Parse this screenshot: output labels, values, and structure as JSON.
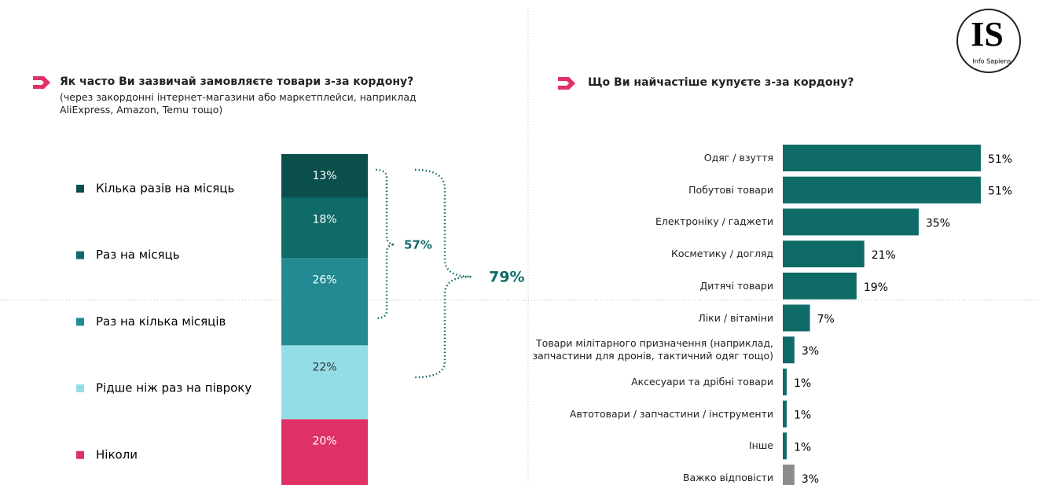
{
  "logo": {
    "mark": "IS",
    "name": "Info Sapiens"
  },
  "chart_data": [
    {
      "type": "stacked-column",
      "title": "Як часто Ви зазвичай замовляєте товари з-за кордону?",
      "subtitle": [
        "(через закордонні інтернет-магазини або маркетплейси, наприклад",
        "AliExpress, Amazon, Temu тощо)"
      ],
      "series": [
        {
          "name": "Кілька разів на місяць",
          "color": "#0b4f4c",
          "values": [
            13
          ],
          "value_labels": [
            "13%"
          ]
        },
        {
          "name": "Раз на місяць",
          "color": "#0f6b68",
          "values": [
            18
          ],
          "value_labels": [
            "18%"
          ]
        },
        {
          "name": "Раз на кілька місяців",
          "color": "#238a93",
          "values": [
            26
          ],
          "value_labels": [
            "26%"
          ]
        },
        {
          "name": "Рідше ніж раз на півроку",
          "color": "#93dde6",
          "values": [
            22
          ],
          "value_labels": [
            "22%"
          ]
        },
        {
          "name": "Ніколи",
          "color": "#e03167",
          "values": [
            20
          ],
          "value_labels": [
            "20%"
          ]
        }
      ],
      "annotations": [
        "57%",
        "79%"
      ]
    },
    {
      "type": "hbar",
      "title": "Що Ви найчастіше купуєте з-за кордону?",
      "categories": [
        "Одяг / взуття",
        "Побутові товари",
        "Електроніку / гаджети",
        "Косметику / догляд",
        "Дитячі товари",
        "Ліки / вітаміни",
        "Товари мілітарного призначення (наприклад, запчастини для дронів, тактичний одяг тощо)",
        "Аксесуари та дрібні товари",
        "Автотовари / запчастини / інструменти",
        "Інше",
        "Важко відповісти"
      ],
      "values": [
        51,
        51,
        35,
        21,
        19,
        7,
        3,
        1,
        1,
        1,
        3
      ],
      "value_labels": [
        "51%",
        "51%",
        "35%",
        "21%",
        "19%",
        "7%",
        "3%",
        "1%",
        "1%",
        "1%",
        "3%"
      ],
      "colors": [
        "#0f6b68",
        "#0f6b68",
        "#0f6b68",
        "#0f6b68",
        "#0f6b68",
        "#0f6b68",
        "#0f6b68",
        "#0f6b68",
        "#0f6b68",
        "#0f6b68",
        "#8c8c8c"
      ]
    }
  ]
}
